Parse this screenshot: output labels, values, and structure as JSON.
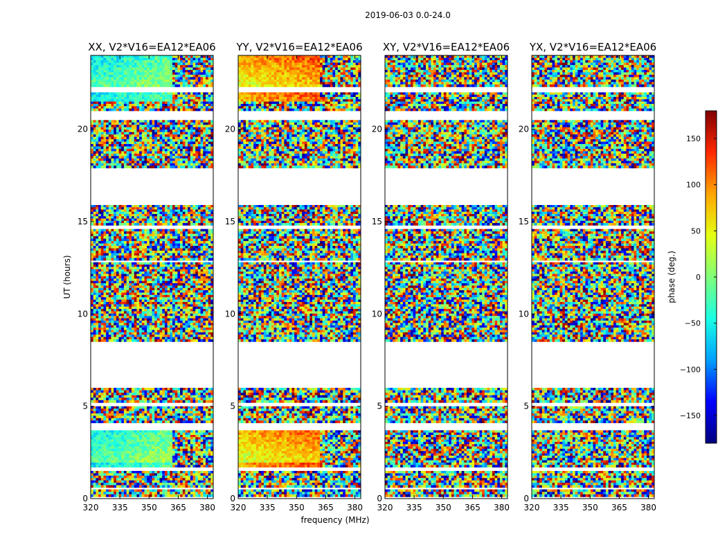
{
  "suptitle": "2019-06-03 0.0-24.0",
  "chart_data": {
    "type": "heatmap",
    "panels": [
      {
        "title": "XX, V2*V16=EA12*EA06",
        "key": "XX"
      },
      {
        "title": "YY, V2*V16=EA12*EA06",
        "key": "YY"
      },
      {
        "title": "XY, V2*V16=EA12*EA06",
        "key": "XY"
      },
      {
        "title": "YX, V2*V16=EA12*EA06",
        "key": "YX"
      }
    ],
    "xlabel": "frequency (MHz)",
    "ylabel": "UT (hours)",
    "xlim": [
      320,
      383
    ],
    "ylim": [
      0,
      24
    ],
    "xticks": [
      320,
      335,
      350,
      365,
      380
    ],
    "xtick_labels": [
      "320",
      "335",
      "350",
      "365",
      "380"
    ],
    "yticks": [
      0,
      5,
      10,
      15,
      20
    ],
    "ytick_labels": [
      "0",
      "5",
      "10",
      "15",
      "20"
    ],
    "colorbar": {
      "label": "phase (deg.)",
      "range": [
        -180,
        180
      ],
      "ticks": [
        -150,
        -100,
        -50,
        0,
        50,
        100,
        150
      ],
      "tick_labels": [
        "−150",
        "−100",
        "−50",
        "0",
        "50",
        "100",
        "150"
      ],
      "colormap": [
        "#00007f",
        "#0000ff",
        "#00a0ff",
        "#1affe4",
        "#80ff7a",
        "#e4ff13",
        "#ffa500",
        "#ff2800",
        "#7f0000"
      ]
    },
    "time_blocks_hours": [
      [
        0.1,
        0.5
      ],
      [
        0.6,
        1.5
      ],
      [
        1.7,
        3.7
      ],
      [
        4.1,
        5.0
      ],
      [
        5.2,
        6.0
      ],
      [
        8.5,
        12.8
      ],
      [
        12.9,
        14.6
      ],
      [
        14.8,
        15.9
      ],
      [
        17.9,
        20.5
      ],
      [
        21.0,
        22.0
      ],
      [
        22.3,
        24.0
      ]
    ],
    "phase_structure": {
      "XX": {
        "smooth_hours": [
          [
            1.6,
            3.7
          ],
          [
            21.5,
            24.0
          ]
        ],
        "smooth_phase_deg": [
          -20,
          -60
        ],
        "smooth_until_mhz": 362
      },
      "YY": {
        "smooth_hours": [
          [
            1.6,
            3.7
          ],
          [
            21.5,
            24.0
          ]
        ],
        "smooth_phase_deg": [
          30,
          90
        ],
        "smooth_until_mhz": 362
      },
      "XY": {
        "smooth_hours": [],
        "smooth_phase_deg": [
          0,
          0
        ],
        "smooth_until_mhz": 320
      },
      "YX": {
        "smooth_hours": [],
        "smooth_phase_deg": [
          0,
          0
        ],
        "smooth_until_mhz": 320
      }
    }
  }
}
